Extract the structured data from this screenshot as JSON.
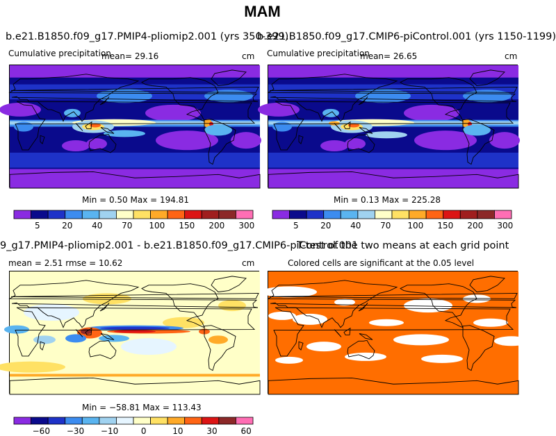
{
  "title": "MAM",
  "panels": [
    {
      "id": "top-left",
      "title": "b.e21.B1850.f09_g17.PMIP4-pliomip2.001 (yrs 350-399)",
      "subtitle_left": "Cumulative precipitation",
      "stat_text": "mean=   29.16",
      "units": "cm",
      "minmax": "Min =    0.50  Max = 194.81",
      "scheme": "precip",
      "colorbar_ticks": [
        "5",
        "20",
        "40",
        "70",
        "100",
        "150",
        "200",
        "300"
      ]
    },
    {
      "id": "top-right",
      "title": "b.e21.B1850.f09_g17.CMIP6-piControl.001 (yrs 1150-1199)",
      "subtitle_left": "Cumulative precipitation",
      "stat_text": "mean=   26.65",
      "units": "cm",
      "minmax": "Min =    0.13  Max = 225.28",
      "scheme": "precip",
      "colorbar_ticks": [
        "5",
        "20",
        "40",
        "70",
        "100",
        "150",
        "200",
        "300"
      ]
    },
    {
      "id": "bottom-left",
      "title": "9_g17.PMIP4-pliomip2.001 - b.e21.B1850.f09_g17.CMIP6-piControl.001",
      "subtitle_left": "mean =    2.51     rmse =   10.62",
      "units": "cm",
      "minmax": "Min = −58.81  Max = 113.43",
      "scheme": "diff",
      "colorbar_ticks": [
        "−60",
        "−30",
        "−10",
        "0",
        "10",
        "30",
        "60"
      ]
    },
    {
      "id": "bottom-right",
      "title": "T-test of the two means at each grid point",
      "subtitle_left": "Colored cells are significant at the 0.05 level",
      "scheme": "ttest"
    }
  ],
  "colors": {
    "precip_levels": [
      "#8a2be2",
      "#0a0a8c",
      "#1e32c8",
      "#3c8cf0",
      "#5ab4f0",
      "#a0d2f0",
      "#ffffc8",
      "#ffe164",
      "#ffaa28",
      "#ff6414",
      "#dc1414",
      "#a01e1e",
      "#8c2828",
      "#ff6eb4"
    ],
    "diff_levels": [
      "#8a2be2",
      "#0a0a8c",
      "#1e32c8",
      "#3c8cf0",
      "#5ab4f0",
      "#a0d2f0",
      "#e6f5ff",
      "#ffffc8",
      "#ffe164",
      "#ffaa28",
      "#ff6414",
      "#dc1414",
      "#8c2828",
      "#ff6eb4"
    ],
    "ttest_significant": "#ff6e00"
  }
}
